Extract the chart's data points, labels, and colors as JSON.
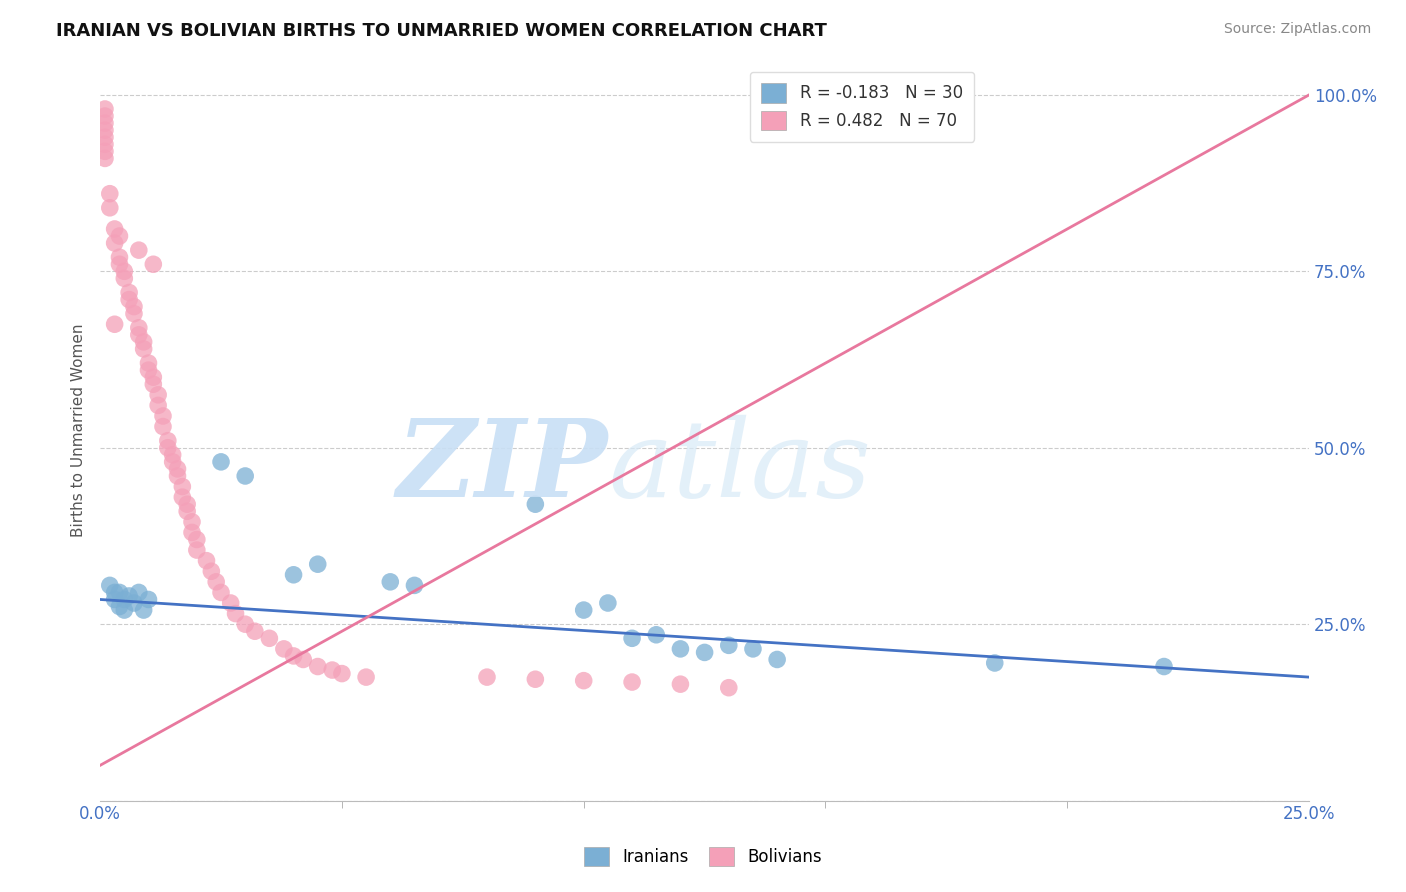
{
  "title": "IRANIAN VS BOLIVIAN BIRTHS TO UNMARRIED WOMEN CORRELATION CHART",
  "source": "Source: ZipAtlas.com",
  "ylabel": "Births to Unmarried Women",
  "ytick_vals": [
    0.0,
    0.25,
    0.5,
    0.75,
    1.0
  ],
  "ytick_labels": [
    "",
    "25.0%",
    "50.0%",
    "75.0%",
    "100.0%"
  ],
  "xtick_vals": [
    0.0,
    0.25
  ],
  "xtick_labels": [
    "0.0%",
    "25.0%"
  ],
  "xmin": 0.0,
  "xmax": 0.25,
  "ymin": 0.0,
  "ymax": 1.05,
  "iranians_color": "#7bafd4",
  "bolivians_color": "#f4a0b8",
  "iranian_trendline_color": "#4472c4",
  "bolivian_trendline_color": "#e8789e",
  "iranians_R": -0.183,
  "iranians_N": 30,
  "bolivians_R": 0.482,
  "bolivians_N": 70,
  "iran_trend_x0": 0.0,
  "iran_trend_y0": 0.285,
  "iran_trend_x1": 0.25,
  "iran_trend_y1": 0.175,
  "boliv_trend_x0": 0.0,
  "boliv_trend_y0": 0.05,
  "boliv_trend_x1": 0.25,
  "boliv_trend_y1": 1.0,
  "iranians_data": [
    [
      0.002,
      0.305
    ],
    [
      0.003,
      0.295
    ],
    [
      0.003,
      0.285
    ],
    [
      0.004,
      0.275
    ],
    [
      0.004,
      0.295
    ],
    [
      0.005,
      0.285
    ],
    [
      0.005,
      0.27
    ],
    [
      0.006,
      0.29
    ],
    [
      0.007,
      0.28
    ],
    [
      0.008,
      0.295
    ],
    [
      0.009,
      0.27
    ],
    [
      0.01,
      0.285
    ],
    [
      0.025,
      0.48
    ],
    [
      0.03,
      0.46
    ],
    [
      0.04,
      0.32
    ],
    [
      0.045,
      0.335
    ],
    [
      0.06,
      0.31
    ],
    [
      0.065,
      0.305
    ],
    [
      0.09,
      0.42
    ],
    [
      0.1,
      0.27
    ],
    [
      0.105,
      0.28
    ],
    [
      0.11,
      0.23
    ],
    [
      0.115,
      0.235
    ],
    [
      0.12,
      0.215
    ],
    [
      0.125,
      0.21
    ],
    [
      0.13,
      0.22
    ],
    [
      0.135,
      0.215
    ],
    [
      0.14,
      0.2
    ],
    [
      0.185,
      0.195
    ],
    [
      0.22,
      0.19
    ]
  ],
  "bolivians_data": [
    [
      0.001,
      0.98
    ],
    [
      0.001,
      0.97
    ],
    [
      0.001,
      0.96
    ],
    [
      0.001,
      0.95
    ],
    [
      0.001,
      0.94
    ],
    [
      0.001,
      0.93
    ],
    [
      0.001,
      0.92
    ],
    [
      0.001,
      0.91
    ],
    [
      0.002,
      0.86
    ],
    [
      0.002,
      0.84
    ],
    [
      0.003,
      0.81
    ],
    [
      0.003,
      0.79
    ],
    [
      0.004,
      0.77
    ],
    [
      0.004,
      0.76
    ],
    [
      0.005,
      0.75
    ],
    [
      0.005,
      0.74
    ],
    [
      0.006,
      0.72
    ],
    [
      0.006,
      0.71
    ],
    [
      0.007,
      0.7
    ],
    [
      0.007,
      0.69
    ],
    [
      0.008,
      0.67
    ],
    [
      0.008,
      0.66
    ],
    [
      0.009,
      0.65
    ],
    [
      0.009,
      0.64
    ],
    [
      0.01,
      0.62
    ],
    [
      0.01,
      0.61
    ],
    [
      0.011,
      0.6
    ],
    [
      0.011,
      0.59
    ],
    [
      0.012,
      0.575
    ],
    [
      0.012,
      0.56
    ],
    [
      0.013,
      0.545
    ],
    [
      0.013,
      0.53
    ],
    [
      0.014,
      0.51
    ],
    [
      0.014,
      0.5
    ],
    [
      0.015,
      0.49
    ],
    [
      0.015,
      0.48
    ],
    [
      0.016,
      0.47
    ],
    [
      0.016,
      0.46
    ],
    [
      0.017,
      0.445
    ],
    [
      0.017,
      0.43
    ],
    [
      0.018,
      0.42
    ],
    [
      0.018,
      0.41
    ],
    [
      0.019,
      0.395
    ],
    [
      0.019,
      0.38
    ],
    [
      0.02,
      0.37
    ],
    [
      0.02,
      0.355
    ],
    [
      0.022,
      0.34
    ],
    [
      0.023,
      0.325
    ],
    [
      0.024,
      0.31
    ],
    [
      0.025,
      0.295
    ],
    [
      0.027,
      0.28
    ],
    [
      0.028,
      0.265
    ],
    [
      0.03,
      0.25
    ],
    [
      0.032,
      0.24
    ],
    [
      0.035,
      0.23
    ],
    [
      0.038,
      0.215
    ],
    [
      0.04,
      0.205
    ],
    [
      0.042,
      0.2
    ],
    [
      0.045,
      0.19
    ],
    [
      0.048,
      0.185
    ],
    [
      0.05,
      0.18
    ],
    [
      0.055,
      0.175
    ],
    [
      0.003,
      0.675
    ],
    [
      0.004,
      0.8
    ],
    [
      0.008,
      0.78
    ],
    [
      0.011,
      0.76
    ],
    [
      0.12,
      0.165
    ],
    [
      0.13,
      0.16
    ],
    [
      0.1,
      0.17
    ],
    [
      0.11,
      0.168
    ],
    [
      0.08,
      0.175
    ],
    [
      0.09,
      0.172
    ]
  ]
}
